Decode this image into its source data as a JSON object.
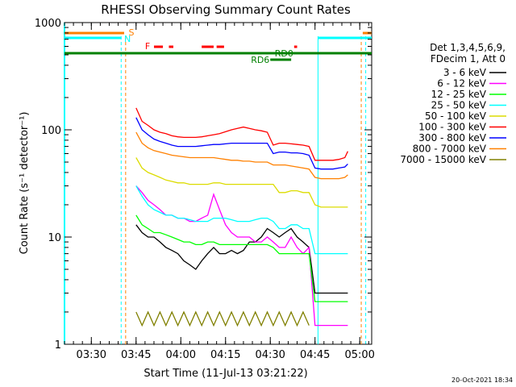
{
  "chart_data": {
    "type": "line",
    "title": "RHESSI Observing Summary Count Rates",
    "xlabel": "Start Time (11-Jul-13 03:21:22)",
    "ylabel": "Count Rate (s⁻¹ detector⁻¹)",
    "yscale": "log",
    "ylim": [
      1,
      1000
    ],
    "xlim_minutes_from_0321": [
      0,
      103
    ],
    "xticks": [
      {
        "t": 9,
        "label": "03:30"
      },
      {
        "t": 24,
        "label": "03:45"
      },
      {
        "t": 39,
        "label": "04:00"
      },
      {
        "t": 54,
        "label": "04:15"
      },
      {
        "t": 69,
        "label": "04:30"
      },
      {
        "t": 84,
        "label": "04:45"
      },
      {
        "t": 99,
        "label": "05:00"
      }
    ],
    "yticks": [
      {
        "v": 1,
        "label": "1"
      },
      {
        "v": 10,
        "label": "10"
      },
      {
        "v": 100,
        "label": "100"
      },
      {
        "v": 1000,
        "label": "1000"
      }
    ],
    "legend": {
      "header_line1": "Det 1,3,4,5,6,9,",
      "header_line2": "FDecim 1, Att 0",
      "placement": "right"
    },
    "series": [
      {
        "name": "3 - 6 keV",
        "color": "#000000",
        "t": [
          20.5,
          24,
          26,
          28,
          30,
          32,
          34,
          36,
          38,
          40,
          42,
          44,
          46,
          48,
          50,
          52,
          54,
          56,
          58,
          60,
          62,
          64,
          66,
          68,
          70,
          72,
          74,
          76,
          78,
          80,
          82,
          84,
          86,
          88,
          90,
          92,
          94,
          95
        ],
        "values": [
          null,
          13,
          11,
          10,
          10,
          9,
          8,
          7.5,
          7,
          6,
          5.5,
          5,
          6,
          7,
          8,
          7,
          7,
          7.5,
          7,
          7.5,
          9,
          9,
          10,
          12,
          11,
          10,
          11,
          12,
          10,
          9,
          8,
          3,
          3,
          3,
          3,
          3,
          3,
          3
        ]
      },
      {
        "name": "6 - 12 keV",
        "color": "#ff00ff",
        "t": [
          24,
          26,
          28,
          30,
          32,
          34,
          36,
          38,
          40,
          42,
          44,
          46,
          48,
          50,
          52,
          54,
          56,
          58,
          60,
          62,
          64,
          66,
          68,
          70,
          72,
          74,
          76,
          78,
          80,
          82,
          84,
          86,
          88,
          90,
          92,
          94,
          95
        ],
        "values": [
          30,
          26,
          22,
          20,
          18,
          16,
          16,
          15,
          15,
          14,
          14,
          15,
          16,
          25,
          18,
          13,
          11,
          10,
          10,
          10,
          9,
          9,
          10,
          9,
          8,
          8,
          10,
          8,
          7,
          8,
          1.5,
          1.5,
          1.5,
          1.5,
          1.5,
          1.5,
          1.5
        ]
      },
      {
        "name": "12 - 25 keV",
        "color": "#00ff00",
        "t": [
          24,
          26,
          28,
          30,
          32,
          34,
          36,
          38,
          40,
          42,
          44,
          46,
          48,
          50,
          52,
          54,
          56,
          58,
          60,
          62,
          64,
          66,
          68,
          70,
          72,
          74,
          76,
          78,
          80,
          82,
          84,
          86,
          88,
          90,
          92,
          94,
          95
        ],
        "values": [
          16,
          13,
          12,
          11,
          11,
          10.5,
          10,
          9.5,
          9,
          9,
          8.5,
          8.5,
          9,
          9,
          8.5,
          8.5,
          8.5,
          8.5,
          8.5,
          8.5,
          8.5,
          8.5,
          8.5,
          8,
          7,
          7,
          7,
          7,
          7,
          7,
          2.5,
          2.5,
          2.5,
          2.5,
          2.5,
          2.5,
          2.5
        ]
      },
      {
        "name": "25 - 50 keV",
        "color": "#00ffff",
        "t": [
          24,
          26,
          28,
          30,
          32,
          34,
          36,
          38,
          40,
          42,
          44,
          46,
          48,
          50,
          52,
          54,
          56,
          58,
          60,
          62,
          64,
          66,
          68,
          70,
          72,
          74,
          76,
          78,
          80,
          82,
          84,
          86,
          88,
          90,
          92,
          94,
          95
        ],
        "values": [
          30,
          24,
          20,
          18,
          17,
          16,
          16,
          15,
          15,
          14.5,
          14,
          14,
          14,
          15,
          15,
          15,
          14.5,
          14,
          14,
          14,
          14.5,
          15,
          15,
          14,
          12,
          12,
          13,
          13,
          12,
          12,
          7,
          7,
          7,
          7,
          7,
          7,
          7
        ]
      },
      {
        "name": "50 - 100 keV",
        "color": "#dcdc00",
        "t": [
          24,
          26,
          28,
          30,
          32,
          34,
          36,
          38,
          40,
          42,
          44,
          46,
          48,
          50,
          52,
          54,
          56,
          58,
          60,
          62,
          64,
          66,
          68,
          70,
          72,
          74,
          76,
          78,
          80,
          82,
          84,
          86,
          88,
          90,
          92,
          94,
          95
        ],
        "values": [
          55,
          44,
          40,
          38,
          36,
          34,
          33,
          32,
          32,
          31,
          31,
          31,
          31,
          32,
          32,
          31,
          31,
          31,
          31,
          31,
          31,
          31,
          31,
          31,
          26,
          26,
          27,
          27,
          26,
          26,
          20,
          19,
          19,
          19,
          19,
          19,
          19
        ]
      },
      {
        "name": "100 - 300 keV",
        "color": "#ff0000",
        "t": [
          24,
          26,
          28,
          30,
          32,
          34,
          36,
          38,
          40,
          42,
          44,
          46,
          48,
          50,
          52,
          54,
          56,
          58,
          60,
          62,
          64,
          66,
          68,
          70,
          72,
          74,
          76,
          78,
          80,
          82,
          84,
          86,
          88,
          90,
          92,
          94,
          95
        ],
        "values": [
          160,
          120,
          110,
          100,
          95,
          92,
          88,
          86,
          85,
          85,
          85,
          86,
          88,
          90,
          92,
          96,
          100,
          103,
          106,
          103,
          100,
          98,
          95,
          72,
          75,
          75,
          74,
          73,
          72,
          70,
          52,
          52,
          52,
          52,
          53,
          55,
          63
        ]
      },
      {
        "name": "300 - 800 keV",
        "color": "#0000ff",
        "t": [
          24,
          26,
          28,
          30,
          32,
          34,
          36,
          38,
          40,
          42,
          44,
          46,
          48,
          50,
          52,
          54,
          56,
          58,
          60,
          62,
          64,
          66,
          68,
          70,
          72,
          74,
          76,
          78,
          80,
          82,
          84,
          86,
          88,
          90,
          92,
          94,
          95
        ],
        "values": [
          130,
          100,
          90,
          82,
          78,
          75,
          72,
          70,
          70,
          70,
          70,
          71,
          72,
          73,
          73,
          74,
          75,
          75,
          75,
          75,
          75,
          75,
          75,
          60,
          62,
          62,
          61,
          61,
          60,
          58,
          44,
          43,
          43,
          43,
          44,
          45,
          48
        ]
      },
      {
        "name": "800 - 7000 keV",
        "color": "#ff8000",
        "t": [
          24,
          26,
          28,
          30,
          32,
          34,
          36,
          38,
          40,
          42,
          44,
          46,
          48,
          50,
          52,
          54,
          56,
          58,
          60,
          62,
          64,
          66,
          68,
          70,
          72,
          74,
          76,
          78,
          80,
          82,
          84,
          86,
          88,
          90,
          92,
          94,
          95
        ],
        "values": [
          95,
          75,
          68,
          64,
          62,
          60,
          58,
          57,
          56,
          55,
          55,
          55,
          55,
          55,
          54,
          53,
          52,
          52,
          51,
          51,
          50,
          50,
          50,
          47,
          47,
          47,
          46,
          45,
          44,
          43,
          36,
          35,
          35,
          35,
          35,
          36,
          38
        ]
      },
      {
        "name": "7000 - 15000 keV",
        "color": "#808000",
        "t": [
          24,
          26,
          28,
          30,
          32,
          34,
          36,
          38,
          40,
          42,
          44,
          46,
          48,
          50,
          52,
          54,
          56,
          58,
          60,
          62,
          64,
          66,
          68,
          70,
          72,
          74,
          76,
          78,
          80,
          82,
          84,
          86,
          88,
          90,
          92,
          94,
          95
        ],
        "values": [
          2,
          1.5,
          2,
          1.5,
          2,
          1.5,
          2,
          1.5,
          2,
          1.5,
          2,
          1.5,
          2,
          1.5,
          2,
          1.5,
          2,
          1.5,
          2,
          1.5,
          2,
          1.5,
          2,
          1.5,
          2,
          1.5,
          2,
          1.5,
          2,
          1.5,
          null,
          null,
          null,
          null,
          null,
          null,
          null
        ]
      }
    ],
    "annotations": [
      {
        "label": "S",
        "color": "#ff8000"
      },
      {
        "label": "N",
        "color": "#00ffff"
      },
      {
        "label": "F",
        "color": "#ff0000"
      },
      {
        "label": "RD0",
        "color": "#008000"
      },
      {
        "label": "RD6",
        "color": "#008000"
      }
    ],
    "footer_date": "20-Oct-2021 18:34"
  }
}
